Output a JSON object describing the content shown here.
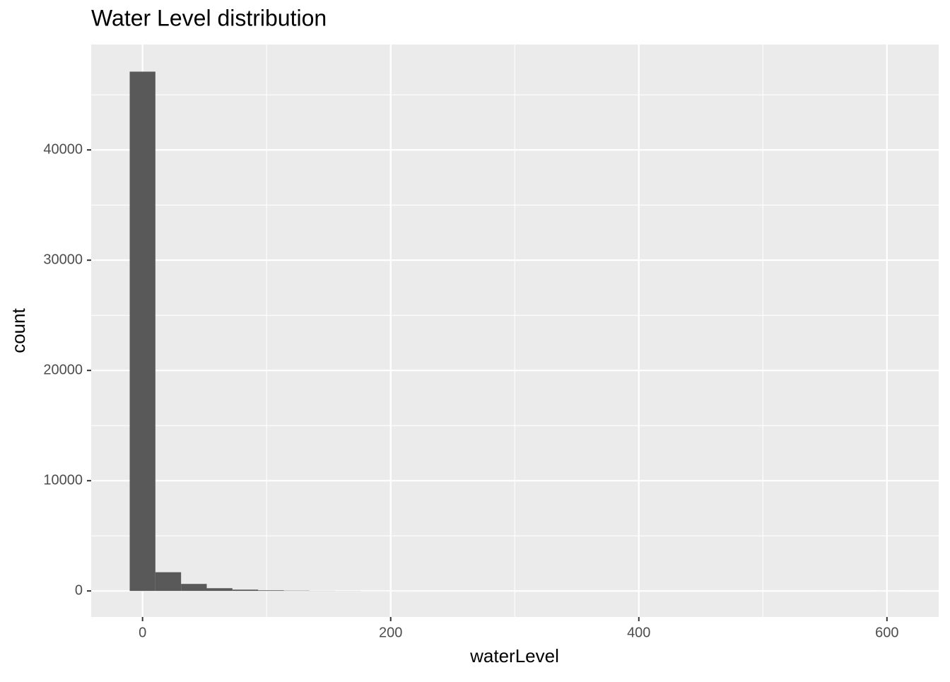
{
  "chart_data": {
    "type": "histogram",
    "title": "Water Level distribution",
    "x_label": "waterLevel",
    "y_label": "count",
    "bins": [
      -10.35,
      10.35,
      31.05,
      51.75,
      72.45,
      93.15,
      113.85,
      134.55,
      155.25,
      175.95,
      196.65,
      217.35,
      238.05,
      258.75,
      279.45,
      300.15,
      320.85,
      341.55,
      362.25,
      382.95,
      403.65,
      424.35,
      445.05,
      465.75,
      486.45,
      507.15,
      527.85,
      548.55,
      569.25,
      589.95,
      610.65
    ],
    "counts": [
      47100,
      1700,
      640,
      250,
      120,
      60,
      30,
      15,
      10,
      5,
      3,
      2,
      1,
      1,
      1,
      0,
      0,
      0,
      0,
      0,
      0,
      0,
      0,
      0,
      0,
      0,
      0,
      0,
      0,
      1
    ],
    "color": "#595959",
    "xlim": [
      -41.4,
      641.7
    ],
    "xticks": [
      0,
      200,
      400,
      600
    ],
    "x_minor_breaks": [
      100,
      300,
      500
    ],
    "ylim": [
      -2360,
      49560
    ],
    "yticks": [
      0,
      10000,
      20000,
      30000,
      40000
    ],
    "y_minor_breaks": [
      5000,
      15000,
      25000,
      35000,
      45000
    ],
    "grid": true
  }
}
